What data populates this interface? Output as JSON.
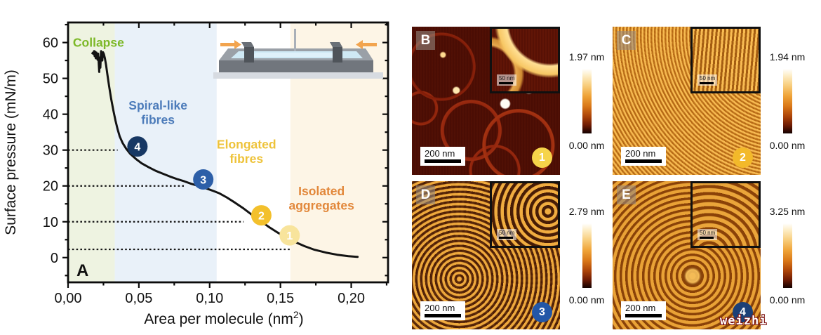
{
  "figure": {
    "watermark": "weizhi"
  },
  "chart_data": {
    "type": "line",
    "panel_label": "A",
    "xlabel_main": "Area per molecule (nm",
    "xlabel_sup": "2",
    "xlabel_end": ")",
    "ylabel": "Surface pressure (mN/m)",
    "xlim": [
      0,
      0.226
    ],
    "ylim": [
      -6.9,
      65.6
    ],
    "grid": false,
    "x_ticks": [
      {
        "v": 0.0,
        "label": "0,00"
      },
      {
        "v": 0.05,
        "label": "0,05"
      },
      {
        "v": 0.1,
        "label": "0,10"
      },
      {
        "v": 0.15,
        "label": "0,15"
      },
      {
        "v": 0.2,
        "label": "0,20"
      }
    ],
    "y_ticks": [
      {
        "v": 0,
        "label": "0"
      },
      {
        "v": 10,
        "label": "10"
      },
      {
        "v": 20,
        "label": "20"
      },
      {
        "v": 30,
        "label": "30"
      },
      {
        "v": 40,
        "label": "40"
      },
      {
        "v": 50,
        "label": "50"
      },
      {
        "v": 60,
        "label": "60"
      }
    ],
    "x_minor_ticks": [
      0.025,
      0.075,
      0.125,
      0.175,
      0.225
    ],
    "y_minor_ticks": [
      -5,
      5,
      15,
      25,
      35,
      45,
      55,
      65
    ],
    "regions": [
      {
        "name": "collapse",
        "x0": 0.0,
        "x1": 0.033,
        "color": "#eef3e1"
      },
      {
        "name": "spiral-like-fibres",
        "x0": 0.033,
        "x1": 0.105,
        "color": "#e9f1f9"
      },
      {
        "name": "elongated-fibres",
        "x0": 0.105,
        "x1": 0.157,
        "color": "#ffffff"
      },
      {
        "name": "isolated-aggregates",
        "x0": 0.157,
        "x1": 0.226,
        "color": "#fdf5e6"
      }
    ],
    "annotations": [
      {
        "lines": [
          "Collapse"
        ],
        "x": 0.0215,
        "y": 60.0,
        "color": "#7cb827"
      },
      {
        "lines": [
          "Spiral-like",
          "fibres"
        ],
        "x": 0.0635,
        "y": 42.5,
        "color": "#4d7cba"
      },
      {
        "lines": [
          "Elongated",
          "fibres"
        ],
        "x": 0.126,
        "y": 31.6,
        "color": "#eec33a"
      },
      {
        "lines": [
          "Isolated",
          "aggregates"
        ],
        "x": 0.179,
        "y": 18.6,
        "color": "#e2873a"
      }
    ],
    "dotted_lines": [
      {
        "y": 30,
        "x_end": 0.035
      },
      {
        "y": 20,
        "x_end": 0.082
      },
      {
        "y": 10,
        "x_end": 0.124
      },
      {
        "y": 2.3,
        "x_end": 0.157
      }
    ],
    "markers": [
      {
        "label": "4",
        "x": 0.049,
        "y": 31.0,
        "color": "#173864",
        "text_color": "#ffffff"
      },
      {
        "label": "3",
        "x": 0.0955,
        "y": 21.8,
        "color": "#2d5fa8",
        "text_color": "#ffffff"
      },
      {
        "label": "2",
        "x": 0.1365,
        "y": 11.8,
        "color": "#f3c02c",
        "text_color": "#ffffff"
      },
      {
        "label": "1",
        "x": 0.1565,
        "y": 6.2,
        "color": "#f8e49c",
        "text_color": "#ffffff"
      }
    ],
    "curve": [
      [
        0.2045,
        0.2
      ],
      [
        0.198,
        0.4
      ],
      [
        0.19,
        0.8
      ],
      [
        0.182,
        1.4
      ],
      [
        0.174,
        2.2
      ],
      [
        0.167,
        3.2
      ],
      [
        0.16,
        4.4
      ],
      [
        0.154,
        5.6
      ],
      [
        0.148,
        7.0
      ],
      [
        0.142,
        8.5
      ],
      [
        0.136,
        10.2
      ],
      [
        0.13,
        11.9
      ],
      [
        0.124,
        13.7
      ],
      [
        0.118,
        15.3
      ],
      [
        0.112,
        16.8
      ],
      [
        0.107,
        17.9
      ],
      [
        0.102,
        18.7
      ],
      [
        0.097,
        19.4
      ],
      [
        0.092,
        20.0
      ],
      [
        0.087,
        20.6
      ],
      [
        0.082,
        21.3
      ],
      [
        0.077,
        21.9
      ],
      [
        0.072,
        22.6
      ],
      [
        0.067,
        23.4
      ],
      [
        0.062,
        24.2
      ],
      [
        0.057,
        25.2
      ],
      [
        0.052,
        26.3
      ],
      [
        0.048,
        27.5
      ],
      [
        0.044,
        28.9
      ],
      [
        0.041,
        30.4
      ],
      [
        0.0385,
        32.0
      ],
      [
        0.0365,
        33.8
      ],
      [
        0.035,
        35.8
      ],
      [
        0.0335,
        38.2
      ],
      [
        0.032,
        41.0
      ],
      [
        0.0305,
        44.2
      ],
      [
        0.029,
        47.8
      ],
      [
        0.0278,
        51.0
      ],
      [
        0.0268,
        53.8
      ],
      [
        0.026,
        55.6
      ],
      [
        0.0253,
        56.8
      ],
      [
        0.0247,
        57.3
      ],
      [
        0.0242,
        55.0
      ],
      [
        0.0238,
        56.8
      ],
      [
        0.0233,
        57.6
      ],
      [
        0.0228,
        53.0
      ],
      [
        0.0224,
        55.8
      ],
      [
        0.022,
        51.8
      ],
      [
        0.0216,
        54.6
      ],
      [
        0.0212,
        56.9
      ],
      [
        0.0208,
        55.2
      ],
      [
        0.0204,
        56.4
      ],
      [
        0.02,
        57.2
      ],
      [
        0.0196,
        55.6
      ],
      [
        0.0192,
        57.4
      ],
      [
        0.0188,
        56.2
      ],
      [
        0.0184,
        57.6
      ],
      [
        0.018,
        56.8
      ],
      [
        0.0176,
        57.2
      ],
      [
        0.0172,
        57.0
      ]
    ]
  },
  "afm_panels": [
    {
      "id": "B",
      "label": "B",
      "badge": "1",
      "badge_color": "#f6d44a",
      "scale_bar": "200 nm",
      "inset_scale_bar": "50 nm",
      "colorbar_max": "1.97 nm",
      "colorbar_min": "0.00 nm"
    },
    {
      "id": "C",
      "label": "C",
      "badge": "2",
      "badge_color": "#f3b92a",
      "scale_bar": "200 nm",
      "inset_scale_bar": "50 nm",
      "colorbar_max": "1.94 nm",
      "colorbar_min": "0.00 nm"
    },
    {
      "id": "D",
      "label": "D",
      "badge": "3",
      "badge_color": "#2357a7",
      "scale_bar": "200 nm",
      "inset_scale_bar": "50 nm",
      "colorbar_max": "2.79 nm",
      "colorbar_min": "0.00 nm"
    },
    {
      "id": "E",
      "label": "E",
      "badge": "4",
      "badge_color": "#1c4077",
      "scale_bar": "200 nm",
      "inset_scale_bar": "50 nm",
      "colorbar_max": "3.25 nm",
      "colorbar_min": "0.00 nm"
    }
  ]
}
